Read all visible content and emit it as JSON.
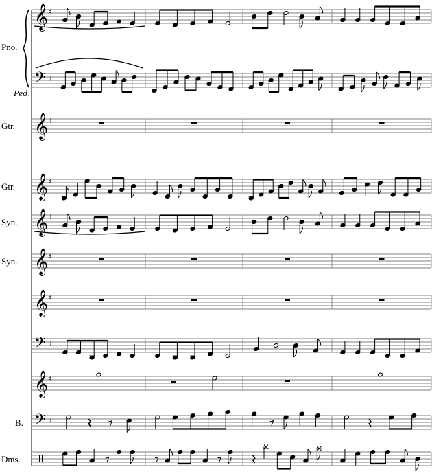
{
  "score": {
    "key_signature": "G major (1 sharp)",
    "pedal_mark": "Ped.",
    "staves": [
      {
        "label": "Pno.",
        "clef": "treble",
        "measures": [
          [
            [
              2,
              "8"
            ],
            [
              4,
              "8"
            ],
            [
              -1,
              "8"
            ],
            [
              0,
              "8"
            ],
            [
              1,
              "q"
            ],
            [
              0,
              "q"
            ]
          ],
          [
            [
              0,
              "8"
            ],
            [
              -1,
              "8"
            ],
            [
              0,
              "8"
            ],
            [
              1,
              "8"
            ],
            [
              0,
              "h"
            ]
          ],
          [
            [
              4,
              "8"
            ],
            [
              6,
              "8"
            ],
            [
              6,
              "h"
            ],
            [
              4,
              "8"
            ],
            [
              3,
              "8"
            ]
          ],
          [
            [
              2,
              "q"
            ],
            [
              2,
              "q"
            ],
            [
              2,
              "8"
            ],
            [
              0,
              "8"
            ],
            [
              0,
              "8"
            ],
            [
              3,
              "8"
            ]
          ]
        ]
      },
      {
        "label": "",
        "clef": "bass",
        "measures": [
          [
            [
              0,
              "8"
            ],
            [
              2,
              "8"
            ],
            [
              4,
              "8"
            ],
            [
              7,
              "8"
            ],
            [
              5,
              "8"
            ],
            [
              3,
              "8"
            ],
            [
              4,
              "8"
            ],
            [
              6,
              "8"
            ]
          ],
          [
            [
              -2,
              "8"
            ],
            [
              0,
              "8"
            ],
            [
              3,
              "8"
            ],
            [
              6,
              "8"
            ],
            [
              5,
              "8"
            ],
            [
              2,
              "8"
            ],
            [
              0,
              "8"
            ],
            [
              -1,
              "8"
            ]
          ],
          [
            [
              0,
              "8"
            ],
            [
              2,
              "8"
            ],
            [
              4,
              "8"
            ],
            [
              7,
              "8"
            ],
            [
              -1,
              "8"
            ],
            [
              1,
              "8"
            ],
            [
              3,
              "8"
            ],
            [
              5,
              "8"
            ]
          ],
          [
            [
              -1,
              "8"
            ],
            [
              0,
              "8"
            ],
            [
              4,
              "8"
            ],
            [
              2,
              "8"
            ],
            [
              6,
              "8"
            ],
            [
              1,
              "8"
            ],
            [
              2,
              "8"
            ],
            [
              5,
              "8"
            ]
          ]
        ]
      },
      {
        "label": "Gtr.",
        "clef": "treble",
        "measures": [
          [
            [
              4,
              "rw"
            ]
          ],
          [
            [
              4,
              "rw"
            ]
          ],
          [
            [
              4,
              "rw"
            ]
          ],
          [
            [
              4,
              "rw"
            ]
          ]
        ]
      },
      {
        "label": "Gtr.",
        "clef": "treble",
        "measures": [
          [
            [
              -3,
              "8"
            ],
            [
              -1,
              "q"
            ],
            [
              7,
              "8"
            ],
            [
              4,
              "8"
            ],
            [
              1,
              "8"
            ],
            [
              2,
              "8"
            ],
            [
              4,
              "8"
            ]
          ],
          [
            [
              0,
              "q"
            ],
            [
              -2,
              "8"
            ],
            [
              4,
              "8"
            ],
            [
              2,
              "8"
            ],
            [
              -2,
              "8"
            ],
            [
              2,
              "8"
            ],
            [
              -2,
              "8"
            ]
          ],
          [
            [
              -3,
              "8"
            ],
            [
              -1,
              "8"
            ],
            [
              1,
              "8"
            ],
            [
              4,
              "8"
            ],
            [
              6,
              "8"
            ],
            [
              1,
              "8"
            ],
            [
              4,
              "8"
            ],
            [
              1,
              "8"
            ]
          ],
          [
            [
              0,
              "8"
            ],
            [
              2,
              "8"
            ],
            [
              5,
              "q"
            ],
            [
              6,
              "8"
            ],
            [
              -1,
              "8"
            ],
            [
              -1,
              "8"
            ],
            [
              2,
              "8"
            ]
          ]
        ]
      },
      {
        "label": "Syn.",
        "clef": "treble",
        "measures": [
          [
            [
              2,
              "8"
            ],
            [
              4,
              "8"
            ],
            [
              -1,
              "8"
            ],
            [
              0,
              "8"
            ],
            [
              1,
              "q"
            ],
            [
              0,
              "q"
            ]
          ],
          [
            [
              0,
              "8"
            ],
            [
              -1,
              "8"
            ],
            [
              0,
              "8"
            ],
            [
              1,
              "8"
            ],
            [
              0,
              "h"
            ]
          ],
          [
            [
              4,
              "8"
            ],
            [
              6,
              "8"
            ],
            [
              6,
              "h"
            ],
            [
              4,
              "8"
            ],
            [
              3,
              "8"
            ]
          ],
          [
            [
              2,
              "q"
            ],
            [
              2,
              "q"
            ],
            [
              2,
              "8"
            ],
            [
              0,
              "8"
            ],
            [
              0,
              "8"
            ],
            [
              3,
              "8"
            ]
          ]
        ]
      },
      {
        "label": "Syn.",
        "clef": "treble",
        "measures": [
          [
            [
              4,
              "rw"
            ]
          ],
          [
            [
              4,
              "rw"
            ]
          ],
          [
            [
              4,
              "rw"
            ]
          ],
          [
            [
              4,
              "rw"
            ]
          ]
        ]
      },
      {
        "label": "",
        "clef": "treble",
        "measures": [
          [
            [
              4,
              "rw"
            ]
          ],
          [
            [
              4,
              "rw"
            ]
          ],
          [
            [
              4,
              "rw"
            ]
          ],
          [
            [
              4,
              "rw"
            ]
          ]
        ]
      },
      {
        "label": "",
        "clef": "bass",
        "measures": [
          [
            [
              0,
              "8"
            ],
            [
              0,
              "8"
            ],
            [
              -3,
              "8"
            ],
            [
              -2,
              "8"
            ],
            [
              -1,
              "q"
            ],
            [
              -2,
              "q"
            ]
          ],
          [
            [
              -2,
              "8"
            ],
            [
              -3,
              "8"
            ],
            [
              -3,
              "8"
            ],
            [
              -1,
              "8"
            ],
            [
              -2,
              "h"
            ]
          ],
          [
            [
              2,
              "q"
            ],
            [
              4,
              "h"
            ],
            [
              4,
              "8"
            ],
            [
              1,
              "8"
            ]
          ],
          [
            [
              0,
              "q"
            ],
            [
              0,
              "q"
            ],
            [
              0,
              "8"
            ],
            [
              -2,
              "8"
            ],
            [
              -2,
              "8"
            ],
            [
              1,
              "8"
            ]
          ]
        ]
      },
      {
        "label": "",
        "clef": "treble",
        "measures": [
          [
            [
              9,
              "w"
            ]
          ],
          [
            [
              4,
              "rh"
            ],
            [
              7,
              "h"
            ]
          ],
          [
            [
              4,
              "rw"
            ]
          ],
          [
            [
              9,
              "w"
            ]
          ]
        ]
      },
      {
        "label": "B.",
        "clef": "bass",
        "measures": [
          [
            [
              7,
              "h"
            ],
            [
              4,
              "rq"
            ],
            [
              4,
              "r8"
            ],
            [
              5,
              "8"
            ]
          ],
          [
            [
              7,
              "h"
            ],
            [
              7,
              "8"
            ],
            [
              8,
              "8"
            ],
            [
              9,
              "8"
            ],
            [
              10,
              "8"
            ]
          ],
          [
            [
              9,
              "q"
            ],
            [
              4,
              "r8"
            ],
            [
              7,
              "8"
            ],
            [
              9,
              "q"
            ],
            [
              8,
              "q"
            ]
          ],
          [
            [
              7,
              "h"
            ],
            [
              4,
              "rq"
            ],
            [
              7,
              "8"
            ],
            [
              8,
              "8"
            ]
          ]
        ]
      },
      {
        "label": "Dms.",
        "clef": "percussion",
        "measures": [
          [
            [
              7,
              "8"
            ],
            [
              8,
              "8"
            ],
            [
              3,
              "q"
            ],
            [
              4,
              "r8"
            ],
            [
              8,
              "q"
            ],
            [
              8,
              "8"
            ]
          ],
          [
            [
              4,
              "r8"
            ],
            [
              3,
              "8"
            ],
            [
              8,
              "8"
            ],
            [
              8,
              "8"
            ],
            [
              3,
              "q"
            ],
            [
              4,
              "r8"
            ],
            [
              8,
              "8"
            ]
          ],
          [
            [
              4,
              "rq"
            ],
            [
              11,
              "q"
            ],
            [
              7,
              "8"
            ],
            [
              5,
              "8"
            ],
            [
              3,
              "8"
            ],
            [
              10,
              "8"
            ]
          ],
          [
            [
              3,
              "q"
            ],
            [
              7,
              "q"
            ],
            [
              8,
              "8"
            ],
            [
              8,
              "8"
            ],
            [
              3,
              "8"
            ],
            [
              4,
              "8"
            ]
          ]
        ]
      }
    ]
  }
}
